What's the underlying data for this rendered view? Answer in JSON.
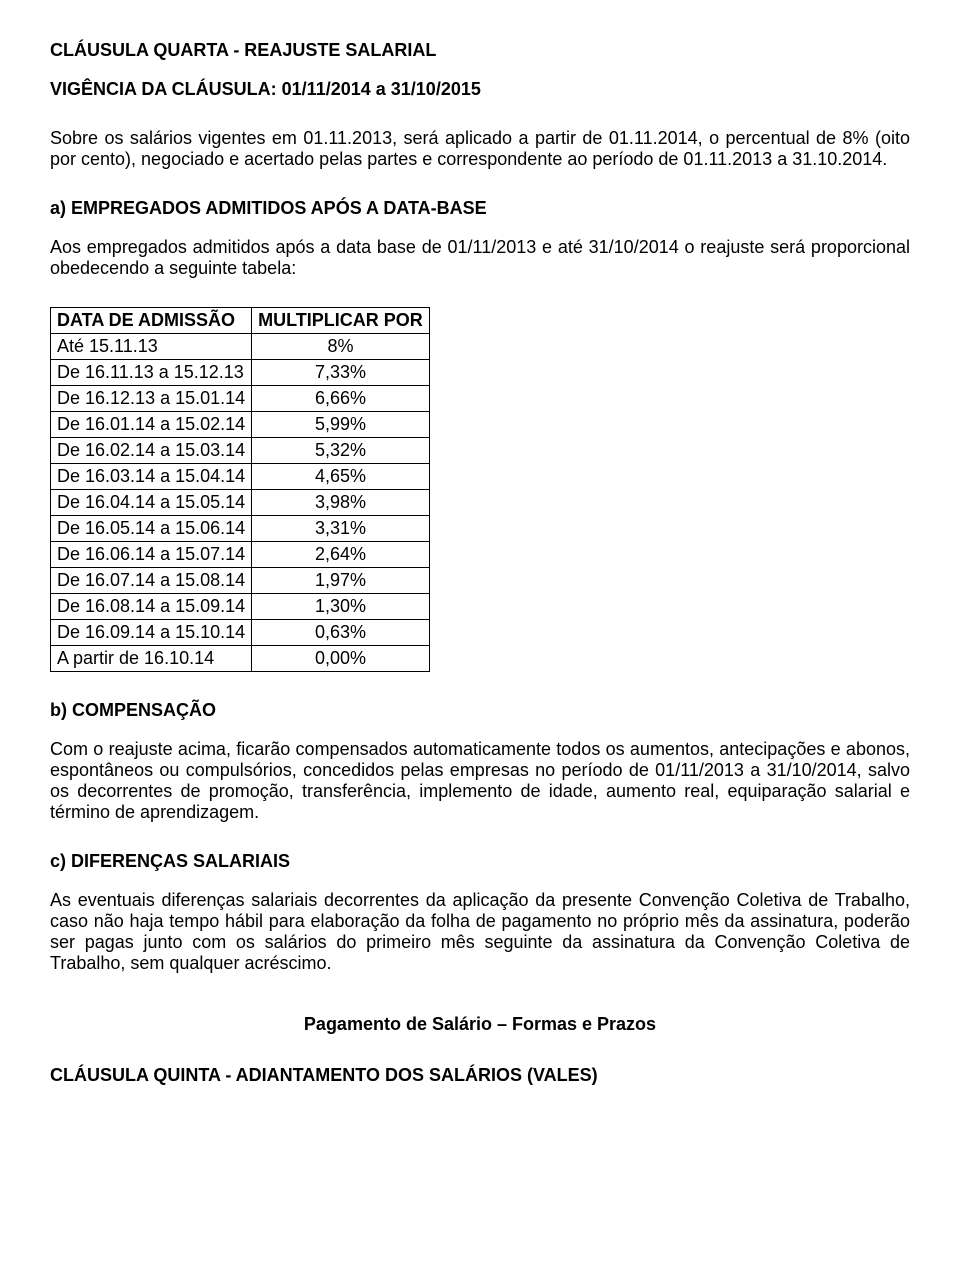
{
  "clause4": {
    "title": "CLÁUSULA QUARTA - REAJUSTE SALARIAL",
    "vigencia": "VIGÊNCIA DA CLÁUSULA: 01/11/2014 a 31/10/2015",
    "intro": "Sobre os salários vigentes em 01.11.2013, será aplicado a partir de 01.11.2014, o percentual de 8% (oito por cento), negociado e acertado pelas partes e correspondente ao período de 01.11.2013 a 31.10.2014.",
    "a_title": "a) EMPREGADOS ADMITIDOS APÓS A DATA-BASE",
    "a_text": "Aos empregados admitidos após a data base de 01/11/2013 e até 31/10/2014 o reajuste será proporcional obedecendo a seguinte tabela:",
    "table": {
      "col1": "DATA DE ADMISSÃO",
      "col2": "MULTIPLICAR POR",
      "rows": [
        {
          "date": "Até 15.11.13",
          "mult": "8%"
        },
        {
          "date": "De  16.11.13 a 15.12.13",
          "mult": "7,33%"
        },
        {
          "date": "De  16.12.13 a 15.01.14",
          "mult": "6,66%"
        },
        {
          "date": "De  16.01.14 a 15.02.14",
          "mult": "5,99%"
        },
        {
          "date": "De  16.02.14 a 15.03.14",
          "mult": "5,32%"
        },
        {
          "date": "De  16.03.14 a 15.04.14",
          "mult": "4,65%"
        },
        {
          "date": "De  16.04.14 a 15.05.14",
          "mult": "3,98%"
        },
        {
          "date": "De  16.05.14 a 15.06.14",
          "mult": "3,31%"
        },
        {
          "date": "De  16.06.14 a 15.07.14",
          "mult": "2,64%"
        },
        {
          "date": "De  16.07.14 a 15.08.14",
          "mult": "1,97%"
        },
        {
          "date": "De  16.08.14 a 15.09.14",
          "mult": "1,30%"
        },
        {
          "date": "De  16.09.14 a 15.10.14",
          "mult": "0,63%"
        },
        {
          "date": "A partir de      16.10.14",
          "mult": "0,00%"
        }
      ]
    },
    "b_title": "b) COMPENSAÇÃO",
    "b_text": "Com o reajuste acima, ficarão compensados automaticamente todos os aumentos, antecipações e abonos, espontâneos ou compulsórios, concedidos pelas empresas no período de 01/11/2013 a 31/10/2014, salvo os decorrentes de promoção, transferência, implemento de idade, aumento real, equiparação salarial e término de aprendizagem.",
    "c_title": "c) DIFERENÇAS SALARIAIS",
    "c_text": "As eventuais diferenças salariais decorrentes da aplicação da presente Convenção Coletiva de Trabalho, caso não haja tempo hábil para elaboração da folha de pagamento no próprio mês da assinatura, poderão ser pagas junto com os salários do primeiro mês seguinte da assinatura da Convenção Coletiva de Trabalho, sem qualquer acréscimo.",
    "section_center": "Pagamento de Salário –  Formas e Prazos",
    "clause5_title": "CLÁUSULA QUINTA - ADIANTAMENTO DOS SALÁRIOS (VALES)"
  }
}
